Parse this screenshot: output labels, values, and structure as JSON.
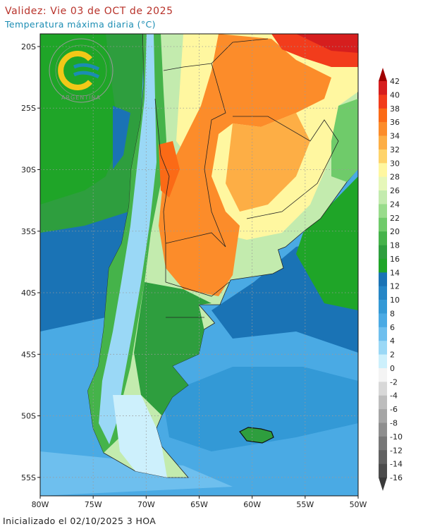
{
  "header": {
    "title": "Validez: Vie 03 de OCT de 2025",
    "subtitle": "Temperatura máxima diaria (°C)"
  },
  "logo": {
    "text": "ARGENTINA"
  },
  "map": {
    "lon_lim": [
      -80,
      -50
    ],
    "lat_lim": [
      -18.97,
      -56.5
    ],
    "lat_ticks": [
      {
        "value": -20,
        "label": "20S"
      },
      {
        "value": -25,
        "label": "25S"
      },
      {
        "value": -30,
        "label": "30S"
      },
      {
        "value": -35,
        "label": "35S"
      },
      {
        "value": -40,
        "label": "40S"
      },
      {
        "value": -45,
        "label": "45S"
      },
      {
        "value": -50,
        "label": "50S"
      },
      {
        "value": -55,
        "label": "55S"
      }
    ],
    "lon_ticks": [
      {
        "value": -80,
        "label": "80W"
      },
      {
        "value": -75,
        "label": "75W"
      },
      {
        "value": -70,
        "label": "70W"
      },
      {
        "value": -65,
        "label": "65W"
      },
      {
        "value": -60,
        "label": "60W"
      },
      {
        "value": -55,
        "label": "55W"
      },
      {
        "value": -50,
        "label": "50W"
      }
    ],
    "grid": true
  },
  "colorbar": {
    "levels": [
      42,
      40,
      38,
      36,
      34,
      32,
      30,
      28,
      26,
      24,
      22,
      20,
      18,
      16,
      14,
      12,
      10,
      8,
      6,
      4,
      2,
      0,
      -2,
      -4,
      -6,
      -8,
      -10,
      -12,
      -14,
      -16
    ],
    "colors": [
      "#d61e1e",
      "#f23c1c",
      "#fb6a16",
      "#fc8c2a",
      "#fdae45",
      "#fed36a",
      "#fff7a0",
      "#e6f7b9",
      "#c3ebae",
      "#99dc8c",
      "#6fcb6a",
      "#45b34a",
      "#2e9e3e",
      "#1fa528",
      "#1a73b5",
      "#2586c6",
      "#3399d6",
      "#4aaae4",
      "#6ebfee",
      "#9ad8f6",
      "#cdf0fc",
      "#f4f4f4",
      "#d8d8d8",
      "#bdbdbd",
      "#a5a5a5",
      "#8e8e8e",
      "#777777",
      "#616161",
      "#4c4c4c"
    ],
    "over_color": "#a00000",
    "under_color": "#3a3a3a"
  },
  "footer": {
    "text": "Inicializado el 02/10/2025 3 HOA"
  }
}
